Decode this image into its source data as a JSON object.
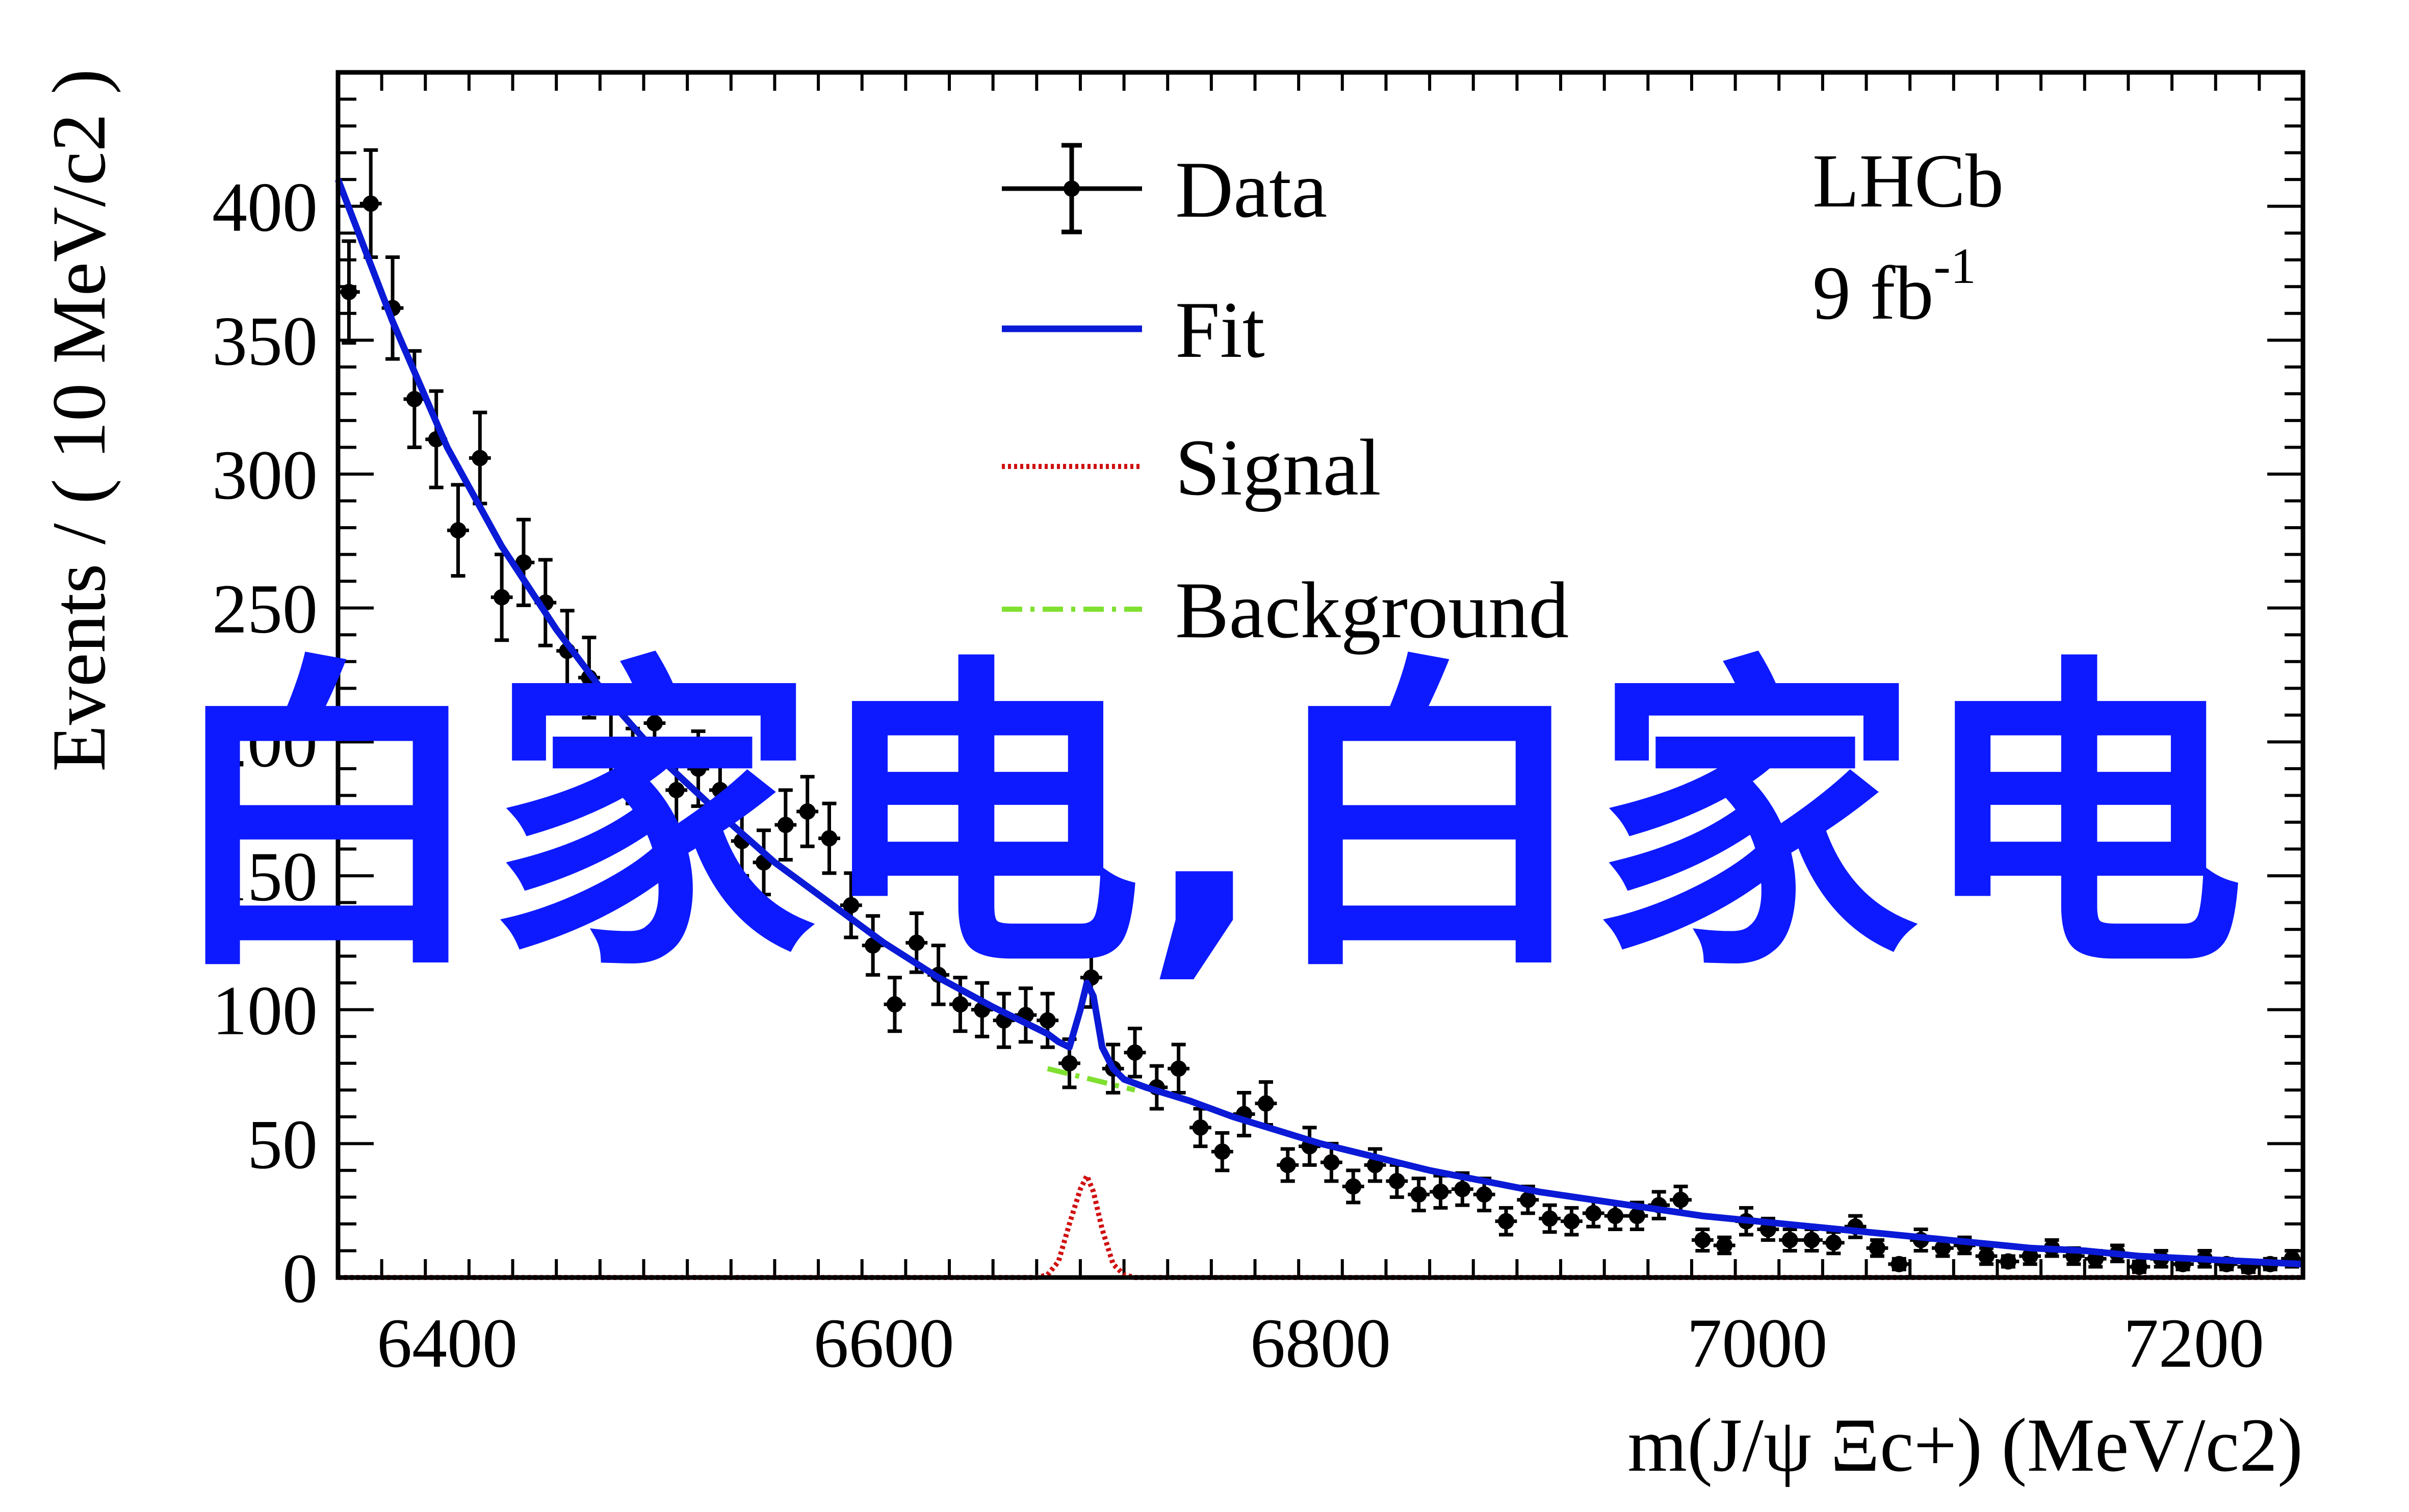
{
  "chart_data": {
    "type": "scatter",
    "xlabel": "m(J/ψ Ξc+) (MeV/c2)",
    "ylabel": "Events / ( 10 MeV/c2 )",
    "xlim": [
      6350,
      7250
    ],
    "ylim": [
      0,
      450
    ],
    "xticks": [
      6400,
      6600,
      6800,
      7000,
      7200
    ],
    "yticks": [
      0,
      50,
      100,
      150,
      200,
      250,
      300,
      350,
      400
    ],
    "grid": false,
    "legend_position": "top-center",
    "experiment": "LHCb",
    "luminosity": "9 fb",
    "luminosity_exp": "-1",
    "colors": {
      "data": "#000000",
      "fit": "#0a1ad6",
      "signal": "#d01010",
      "background": "#7fe030"
    },
    "series": [
      {
        "name": "Data",
        "style": "points-with-errors",
        "x": [
          6355,
          6365,
          6375,
          6385,
          6395,
          6405,
          6415,
          6425,
          6435,
          6445,
          6455,
          6465,
          6475,
          6485,
          6495,
          6505,
          6515,
          6525,
          6535,
          6545,
          6555,
          6565,
          6575,
          6585,
          6595,
          6605,
          6615,
          6625,
          6635,
          6645,
          6655,
          6665,
          6675,
          6685,
          6695,
          6705,
          6715,
          6725,
          6735,
          6745,
          6755,
          6765,
          6775,
          6785,
          6795,
          6805,
          6815,
          6825,
          6835,
          6845,
          6855,
          6865,
          6875,
          6885,
          6895,
          6905,
          6915,
          6925,
          6935,
          6945,
          6955,
          6965,
          6975,
          6985,
          6995,
          7005,
          7015,
          7025,
          7035,
          7045,
          7055,
          7065,
          7075,
          7085,
          7095,
          7105,
          7115,
          7125,
          7135,
          7145,
          7155,
          7165,
          7175,
          7185,
          7195,
          7205,
          7215,
          7225,
          7235,
          7245
        ],
        "y": [
          368,
          401,
          362,
          328,
          313,
          279,
          306,
          254,
          267,
          252,
          234,
          224,
          197,
          191,
          207,
          182,
          190,
          182,
          163,
          155,
          169,
          174,
          164,
          139,
          124,
          102,
          125,
          113,
          102,
          100,
          96,
          98,
          96,
          80,
          112,
          78,
          84,
          71,
          78,
          56,
          47,
          61,
          65,
          42,
          49,
          43,
          34,
          42,
          36,
          31,
          32,
          33,
          31,
          21,
          29,
          22,
          21,
          24,
          23,
          23,
          27,
          29,
          14,
          12,
          21,
          18,
          14,
          14,
          13,
          19,
          11,
          5,
          14,
          11,
          12,
          8,
          6,
          8,
          11,
          8,
          7,
          9,
          4,
          7,
          5,
          7,
          5,
          4,
          5,
          7
        ],
        "err": [
          19,
          20,
          19,
          18,
          18,
          17,
          17,
          16,
          16,
          16,
          15,
          15,
          14,
          14,
          14,
          13,
          14,
          13,
          13,
          12,
          13,
          13,
          13,
          12,
          11,
          10,
          11,
          11,
          10,
          10,
          10,
          10,
          10,
          9,
          11,
          9,
          9,
          8,
          9,
          7,
          7,
          8,
          8,
          6,
          7,
          7,
          6,
          6,
          6,
          6,
          6,
          6,
          6,
          5,
          5,
          5,
          5,
          5,
          5,
          5,
          5,
          5,
          4,
          3,
          5,
          4,
          4,
          4,
          4,
          4,
          3,
          2,
          4,
          3,
          3,
          3,
          2,
          3,
          3,
          3,
          3,
          3,
          2,
          3,
          2,
          3,
          2,
          2,
          2,
          3
        ]
      },
      {
        "name": "Fit",
        "style": "solid",
        "x": [
          6350,
          6375,
          6400,
          6425,
          6450,
          6475,
          6500,
          6525,
          6550,
          6575,
          6600,
          6625,
          6650,
          6675,
          6680,
          6685,
          6690,
          6693,
          6696,
          6700,
          6705,
          6710,
          6720,
          6740,
          6760,
          6780,
          6800,
          6825,
          6850,
          6875,
          6900,
          6925,
          6950,
          6975,
          7000,
          7025,
          7050,
          7075,
          7100,
          7125,
          7150,
          7175,
          7200,
          7225,
          7250
        ],
        "y": [
          410,
          357,
          310,
          273,
          242,
          215,
          192,
          173,
          155,
          140,
          125,
          112,
          101,
          91,
          88,
          86,
          100,
          110,
          105,
          86,
          78,
          74,
          71,
          66,
          60,
          55,
          50,
          45,
          40,
          36,
          32,
          29,
          26,
          23,
          21,
          19,
          17,
          15,
          13,
          11,
          10,
          8,
          7,
          6,
          5
        ]
      },
      {
        "name": "Signal",
        "style": "dotted",
        "x": [
          6350,
          6670,
          6675,
          6680,
          6685,
          6690,
          6693,
          6696,
          6700,
          6705,
          6710,
          6715,
          7250
        ],
        "y": [
          0,
          0,
          1,
          6,
          20,
          33,
          38,
          32,
          18,
          5,
          1,
          0,
          0
        ]
      },
      {
        "name": "Background",
        "style": "dash-dot",
        "x": [
          6675,
          6685,
          6695,
          6705,
          6715
        ],
        "y": [
          78,
          76,
          74,
          72,
          70
        ]
      }
    ]
  },
  "watermark": {
    "text": "白家电,白家电"
  }
}
